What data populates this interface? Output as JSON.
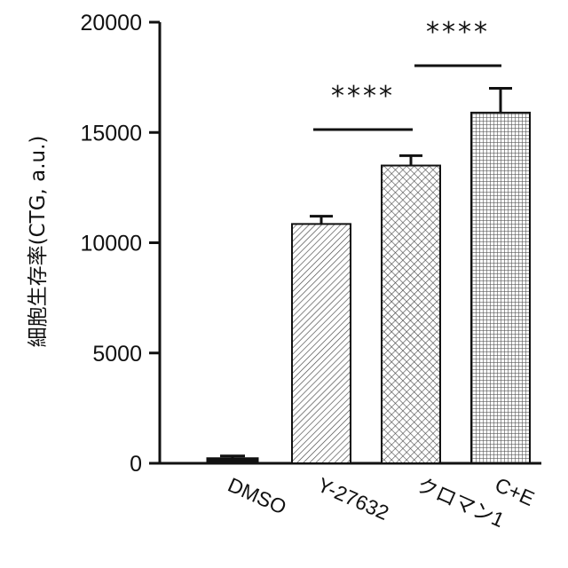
{
  "chart_data": {
    "type": "bar",
    "ylabel": "細胞生存率(CTG, a.u.)",
    "ylim": [
      0,
      20000
    ],
    "yticks": [
      0,
      5000,
      10000,
      15000,
      20000
    ],
    "categories": [
      "DMSO",
      "Y-27632",
      "クロマン1",
      "C+E"
    ],
    "values": [
      250,
      10850,
      13500,
      15900
    ],
    "errors": [
      80,
      350,
      450,
      1100
    ],
    "patterns": [
      "solid",
      "diagonal-hatch",
      "crosshatch",
      "dense-crosshatch"
    ],
    "significance": [
      {
        "from": "Y-27632",
        "to": "クロマン1",
        "label": "****"
      },
      {
        "from": "クロマン1",
        "to": "C+E",
        "label": "****"
      }
    ],
    "bar_color": "#111111"
  }
}
